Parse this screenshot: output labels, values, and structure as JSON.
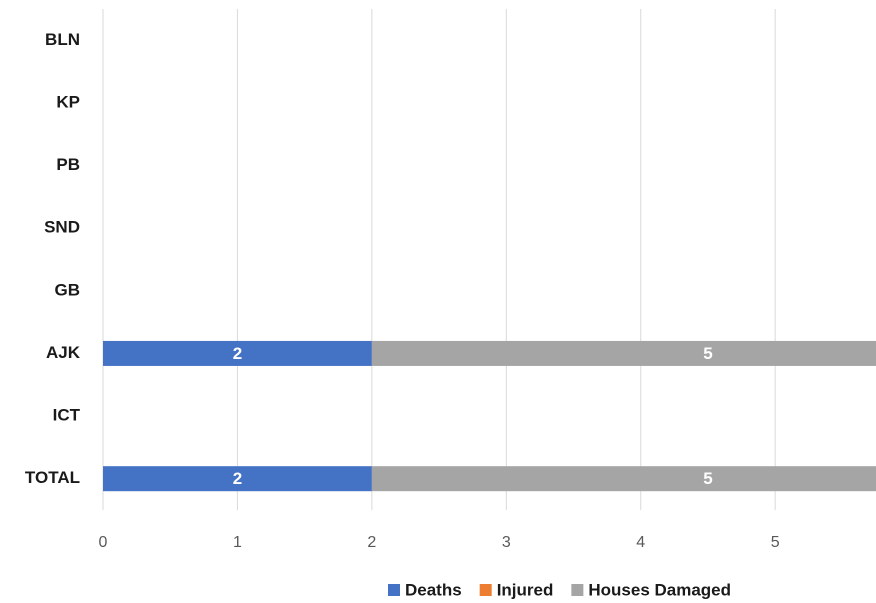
{
  "chart_data": {
    "type": "stacked_bar_horizontal",
    "categories": [
      "BLN",
      "KP",
      "PB",
      "SND",
      "GB",
      "AJK",
      "ICT",
      "TOTAL"
    ],
    "series": [
      {
        "name": "Deaths",
        "color": "#4472c4",
        "values": [
          null,
          null,
          null,
          null,
          null,
          2,
          null,
          2
        ]
      },
      {
        "name": "Injured",
        "color": "#ed7d31",
        "values": [
          null,
          null,
          null,
          null,
          null,
          null,
          null,
          null
        ]
      },
      {
        "name": "Houses Damaged",
        "color": "#a5a5a5",
        "values": [
          null,
          null,
          null,
          null,
          null,
          5,
          null,
          5
        ]
      }
    ],
    "xlim": [
      0,
      5.75
    ],
    "xticks": [
      0,
      1,
      2,
      3,
      4,
      5
    ],
    "grid": true,
    "legend": "bottom"
  }
}
